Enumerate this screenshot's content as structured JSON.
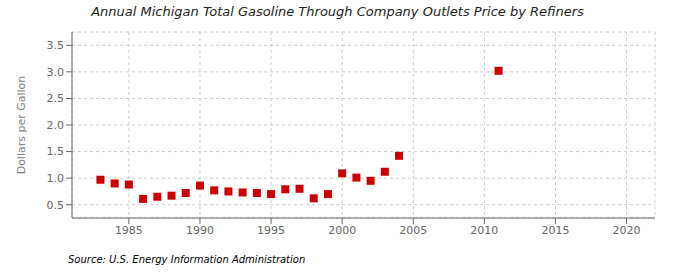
{
  "chart_data": {
    "type": "scatter",
    "title": "Annual Michigan Total Gasoline Through Company Outlets Price by Refiners",
    "y_label": "Dollars per Gallon",
    "annotations": [
      "Source: U.S. Energy Information Administration"
    ],
    "x": [
      1983,
      1984,
      1985,
      1986,
      1987,
      1988,
      1989,
      1990,
      1991,
      1992,
      1993,
      1994,
      1995,
      1996,
      1997,
      1998,
      1999,
      2000,
      2001,
      2002,
      2003,
      2004,
      2011
    ],
    "values": [
      0.97,
      0.9,
      0.88,
      0.61,
      0.65,
      0.67,
      0.72,
      0.86,
      0.77,
      0.75,
      0.73,
      0.72,
      0.7,
      0.79,
      0.8,
      0.62,
      0.7,
      1.09,
      1.01,
      0.95,
      1.12,
      1.42,
      3.02
    ],
    "color": "#cc0000",
    "marker": "square",
    "xlim": [
      1981,
      2022
    ],
    "ylim": [
      0.25,
      3.75
    ],
    "xticks": [
      1985,
      1990,
      1995,
      2000,
      2005,
      2010,
      2015,
      2020
    ],
    "yticks": [
      0.5,
      {
        "value": 1.0,
        "label": "1.0"
      },
      1.5,
      {
        "value": 2.0,
        "label": "2.0"
      },
      2.5,
      {
        "value": 3.0,
        "label": "3.0"
      },
      3.5
    ],
    "grid": true
  }
}
